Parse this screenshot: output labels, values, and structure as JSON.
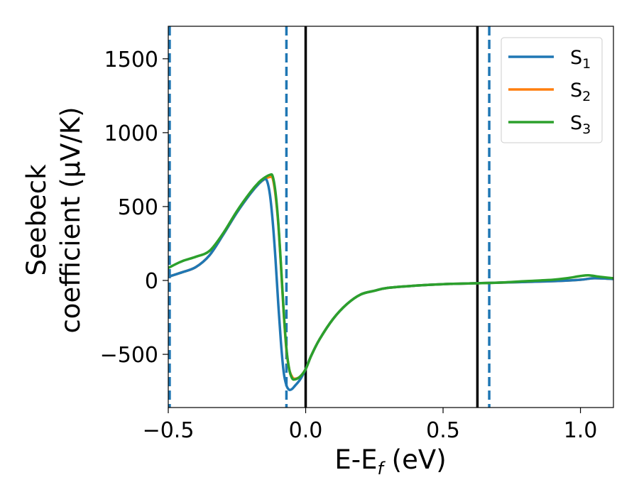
{
  "chart_data": {
    "type": "line",
    "title": "",
    "xlabel": "E-E",
    "xlabel_sub": "f",
    "xlabel_unit": " (eV)",
    "ylabel_line1": "Seebeck",
    "ylabel_line2": "coefficient  (μV/K)",
    "xlim": [
      -0.5,
      1.12
    ],
    "ylim": [
      -860,
      1720
    ],
    "xticks": [
      -0.5,
      0.0,
      0.5,
      1.0
    ],
    "xtick_labels": [
      "−0.5",
      "0.0",
      "0.5",
      "1.0"
    ],
    "yticks": [
      -500,
      0,
      500,
      1000,
      1500
    ],
    "ytick_labels": [
      "−500",
      "0",
      "500",
      "1000",
      "1500"
    ],
    "grid": false,
    "legend_position": "top-right",
    "vlines": [
      {
        "x": -0.495,
        "style": "dashed",
        "color": "#1f77b4"
      },
      {
        "x": -0.07,
        "style": "dashed",
        "color": "#1f77b4"
      },
      {
        "x": 0.0,
        "style": "solid",
        "color": "#000000"
      },
      {
        "x": 0.625,
        "style": "solid",
        "color": "#000000"
      },
      {
        "x": 0.668,
        "style": "dashed",
        "color": "#1f77b4"
      }
    ],
    "series": [
      {
        "name": "S",
        "sub": "1",
        "color": "#1f77b4",
        "points": [
          [
            -0.5,
            25
          ],
          [
            -0.45,
            55
          ],
          [
            -0.4,
            90
          ],
          [
            -0.35,
            170
          ],
          [
            -0.3,
            310
          ],
          [
            -0.25,
            460
          ],
          [
            -0.2,
            590
          ],
          [
            -0.17,
            655
          ],
          [
            -0.15,
            685
          ],
          [
            -0.14,
            670
          ],
          [
            -0.13,
            580
          ],
          [
            -0.12,
            400
          ],
          [
            -0.11,
            150
          ],
          [
            -0.1,
            -150
          ],
          [
            -0.09,
            -420
          ],
          [
            -0.08,
            -620
          ],
          [
            -0.07,
            -710
          ],
          [
            -0.06,
            -740
          ],
          [
            -0.05,
            -735
          ],
          [
            -0.04,
            -715
          ],
          [
            -0.02,
            -670
          ],
          [
            0.0,
            -600
          ],
          [
            0.02,
            -510
          ],
          [
            0.05,
            -400
          ],
          [
            0.1,
            -260
          ],
          [
            0.15,
            -160
          ],
          [
            0.2,
            -95
          ],
          [
            0.25,
            -70
          ],
          [
            0.3,
            -50
          ],
          [
            0.4,
            -35
          ],
          [
            0.5,
            -25
          ],
          [
            0.6,
            -20
          ],
          [
            0.7,
            -15
          ],
          [
            0.8,
            -10
          ],
          [
            0.9,
            -5
          ],
          [
            1.0,
            5
          ],
          [
            1.05,
            15
          ],
          [
            1.12,
            10
          ]
        ]
      },
      {
        "name": "S",
        "sub": "2",
        "color": "#ff7f0e",
        "points": [
          [
            -0.5,
            25
          ],
          [
            -0.45,
            55
          ],
          [
            -0.4,
            90
          ],
          [
            -0.35,
            170
          ],
          [
            -0.3,
            310
          ],
          [
            -0.25,
            460
          ],
          [
            -0.2,
            590
          ],
          [
            -0.17,
            655
          ],
          [
            -0.15,
            685
          ],
          [
            -0.13,
            700
          ],
          [
            -0.12,
            690
          ],
          [
            -0.11,
            580
          ],
          [
            -0.1,
            390
          ],
          [
            -0.09,
            100
          ],
          [
            -0.08,
            -220
          ],
          [
            -0.07,
            -470
          ],
          [
            -0.06,
            -600
          ],
          [
            -0.05,
            -650
          ],
          [
            -0.04,
            -665
          ],
          [
            -0.02,
            -650
          ],
          [
            0.0,
            -600
          ],
          [
            0.02,
            -510
          ],
          [
            0.05,
            -400
          ],
          [
            0.1,
            -260
          ],
          [
            0.15,
            -160
          ],
          [
            0.2,
            -95
          ],
          [
            0.25,
            -70
          ],
          [
            0.3,
            -50
          ],
          [
            0.4,
            -35
          ],
          [
            0.5,
            -25
          ],
          [
            0.6,
            -20
          ],
          [
            0.7,
            -15
          ],
          [
            0.8,
            -10
          ],
          [
            0.9,
            -5
          ],
          [
            1.0,
            5
          ],
          [
            1.05,
            15
          ],
          [
            1.12,
            10
          ]
        ]
      },
      {
        "name": "S",
        "sub": "3",
        "color": "#2ca02c",
        "points": [
          [
            -0.5,
            85
          ],
          [
            -0.45,
            130
          ],
          [
            -0.4,
            160
          ],
          [
            -0.35,
            200
          ],
          [
            -0.3,
            320
          ],
          [
            -0.25,
            470
          ],
          [
            -0.2,
            600
          ],
          [
            -0.17,
            665
          ],
          [
            -0.15,
            695
          ],
          [
            -0.13,
            715
          ],
          [
            -0.12,
            705
          ],
          [
            -0.11,
            600
          ],
          [
            -0.1,
            400
          ],
          [
            -0.09,
            110
          ],
          [
            -0.08,
            -210
          ],
          [
            -0.07,
            -460
          ],
          [
            -0.06,
            -600
          ],
          [
            -0.05,
            -660
          ],
          [
            -0.04,
            -670
          ],
          [
            -0.02,
            -650
          ],
          [
            0.0,
            -600
          ],
          [
            0.02,
            -510
          ],
          [
            0.05,
            -400
          ],
          [
            0.1,
            -260
          ],
          [
            0.15,
            -160
          ],
          [
            0.2,
            -95
          ],
          [
            0.25,
            -70
          ],
          [
            0.3,
            -50
          ],
          [
            0.4,
            -35
          ],
          [
            0.5,
            -25
          ],
          [
            0.6,
            -20
          ],
          [
            0.7,
            -15
          ],
          [
            0.8,
            -5
          ],
          [
            0.9,
            5
          ],
          [
            0.95,
            15
          ],
          [
            1.0,
            30
          ],
          [
            1.03,
            35
          ],
          [
            1.07,
            25
          ],
          [
            1.12,
            15
          ]
        ]
      }
    ]
  }
}
